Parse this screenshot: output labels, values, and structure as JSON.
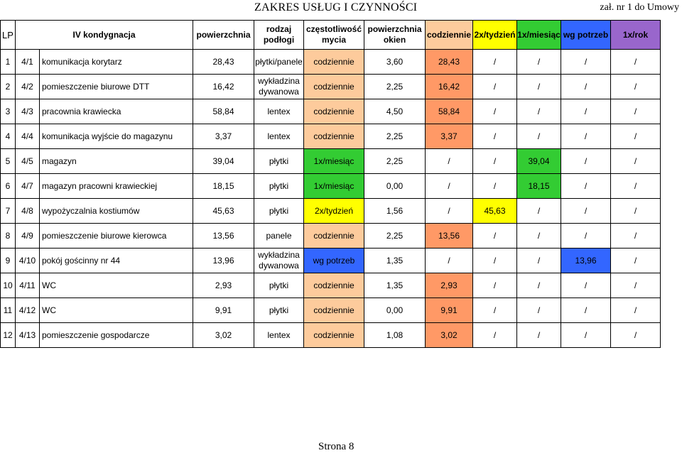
{
  "title": "ZAKRES USŁUG I CZYNNOŚCI",
  "annex": "zał. nr 1 do Umowy",
  "headers": {
    "lp": "LP",
    "floor": "IV kondygnacja",
    "area": "powierzchnia",
    "floor_type": "rodzaj podłogi",
    "frequency": "częstotliwość mycia",
    "window_area": "powierzchnia okien",
    "daily": "codziennie",
    "twice_week": "2x/tydzień",
    "monthly": "1x/miesiąc",
    "as_needed": "wg potrzeb",
    "yearly": "1x/rok"
  },
  "colors": {
    "daily": "#FDCB9C",
    "twice_week": "#FFFF00",
    "monthly": "#33CC33",
    "as_needed": "#3366FF",
    "yearly": "#9966CC",
    "col_daily": "#FF9966"
  },
  "rows": [
    {
      "lp": "1",
      "code": "4/1",
      "name": "komunikacja korytarz",
      "area": "28,43",
      "floor": "płytki/panele",
      "freq": "codziennie",
      "win": "3,60",
      "c1": "28,43",
      "c2": "/",
      "c3": "/",
      "c4": "/",
      "c5": "/"
    },
    {
      "lp": "2",
      "code": "4/2",
      "name": "pomieszczenie biurowe DTT",
      "area": "16,42",
      "floor": "wykładzina dywanowa",
      "freq": "codziennie",
      "win": "2,25",
      "c1": "16,42",
      "c2": "/",
      "c3": "/",
      "c4": "/",
      "c5": "/"
    },
    {
      "lp": "3",
      "code": "4/3",
      "name": "pracownia krawiecka",
      "area": "58,84",
      "floor": "lentex",
      "freq": "codziennie",
      "win": "4,50",
      "c1": "58,84",
      "c2": "/",
      "c3": "/",
      "c4": "/",
      "c5": "/"
    },
    {
      "lp": "4",
      "code": "4/4",
      "name": "komunikacja wyjście do magazynu",
      "area": "3,37",
      "floor": "lentex",
      "freq": "codziennie",
      "win": "2,25",
      "c1": "3,37",
      "c2": "/",
      "c3": "/",
      "c4": "/",
      "c5": "/"
    },
    {
      "lp": "5",
      "code": "4/5",
      "name": "magazyn",
      "area": "39,04",
      "floor": "płytki",
      "freq": "1x/miesiąc",
      "win": "2,25",
      "c1": "/",
      "c2": "/",
      "c3": "39,04",
      "c4": "/",
      "c5": "/"
    },
    {
      "lp": "6",
      "code": "4/7",
      "name": "magazyn pracowni krawieckiej",
      "area": "18,15",
      "floor": "płytki",
      "freq": "1x/miesiąc",
      "win": "0,00",
      "c1": "/",
      "c2": "/",
      "c3": "18,15",
      "c4": "/",
      "c5": "/"
    },
    {
      "lp": "7",
      "code": "4/8",
      "name": "wypożyczalnia kostiumów",
      "area": "45,63",
      "floor": "płytki",
      "freq": "2x/tydzień",
      "win": "1,56",
      "c1": "/",
      "c2": "45,63",
      "c3": "/",
      "c4": "/",
      "c5": "/"
    },
    {
      "lp": "8",
      "code": "4/9",
      "name": "pomieszczenie biurowe kierowca",
      "area": "13,56",
      "floor": "panele",
      "freq": "codziennie",
      "win": "2,25",
      "c1": "13,56",
      "c2": "/",
      "c3": "/",
      "c4": "/",
      "c5": "/"
    },
    {
      "lp": "9",
      "code": "4/10",
      "name": "pokój gościnny nr 44",
      "area": "13,96",
      "floor": "wykładzina dywanowa",
      "freq": "wg potrzeb",
      "win": "1,35",
      "c1": "/",
      "c2": "/",
      "c3": "/",
      "c4": "13,96",
      "c5": "/"
    },
    {
      "lp": "10",
      "code": "4/11",
      "name": "WC",
      "area": "2,93",
      "floor": "płytki",
      "freq": "codziennie",
      "win": "1,35",
      "c1": "2,93",
      "c2": "/",
      "c3": "/",
      "c4": "/",
      "c5": "/"
    },
    {
      "lp": "11",
      "code": "4/12",
      "name": "WC",
      "area": "9,91",
      "floor": "płytki",
      "freq": "codziennie",
      "win": "0,00",
      "c1": "9,91",
      "c2": "/",
      "c3": "/",
      "c4": "/",
      "c5": "/"
    },
    {
      "lp": "12",
      "code": "4/13",
      "name": "pomieszczenie gospodarcze",
      "area": "3,02",
      "floor": "lentex",
      "freq": "codziennie",
      "win": "1,08",
      "c1": "3,02",
      "c2": "/",
      "c3": "/",
      "c4": "/",
      "c5": "/"
    }
  ],
  "footer": "Strona 8"
}
